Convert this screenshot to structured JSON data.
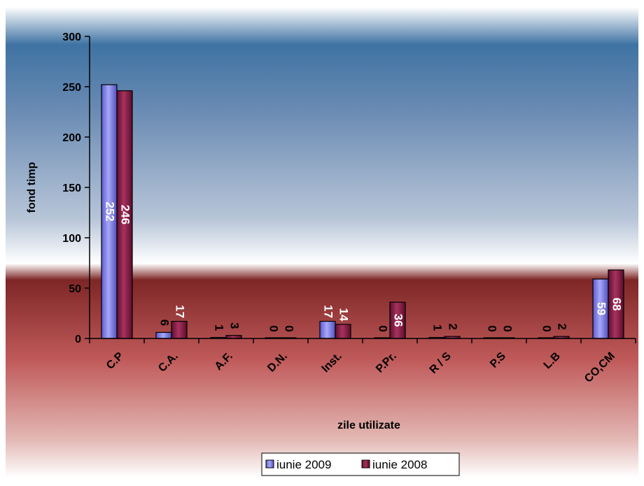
{
  "chart_data": {
    "type": "bar",
    "title": "",
    "xlabel": "zile utilizate",
    "ylabel": "fond timp",
    "ylim": [
      0,
      300
    ],
    "yticks": [
      0,
      50,
      100,
      150,
      200,
      250,
      300
    ],
    "categories": [
      "C.P",
      "C.A.",
      "A.F.",
      "D.N.",
      "Inst.",
      "P.Pr.",
      "R / S",
      "P.S",
      "L.B",
      "CO,CM"
    ],
    "series": [
      {
        "name": "iunie 2009",
        "color": "#8080e0",
        "values": [
          252,
          6,
          1,
          0,
          17,
          0,
          1,
          0,
          0,
          59
        ]
      },
      {
        "name": "iunie 2008",
        "color": "#8b1a4a",
        "values": [
          246,
          17,
          3,
          0,
          14,
          36,
          2,
          0,
          2,
          68
        ]
      }
    ],
    "grid": false,
    "legend": "bottom"
  }
}
